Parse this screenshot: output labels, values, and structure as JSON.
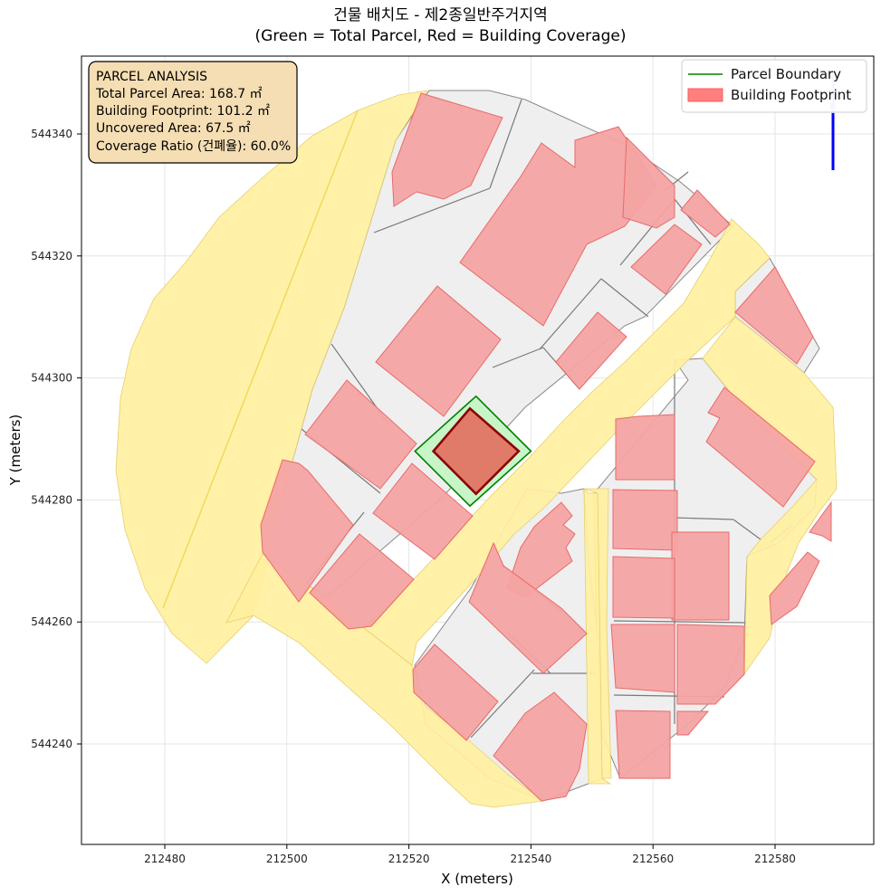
{
  "title": {
    "line1": "건물 배치도 - 제2종일반주거지역",
    "line2": "(Green = Total Parcel, Red = Building Coverage)"
  },
  "axes": {
    "xlabel": "X (meters)",
    "ylabel": "Y (meters)",
    "x_ticks": [
      "212480",
      "212500",
      "212520",
      "212540",
      "212560",
      "212580"
    ],
    "y_ticks": [
      "544340",
      "544320",
      "544300",
      "544280",
      "544260",
      "544240"
    ],
    "grid": true
  },
  "legend": {
    "placement": "top-right",
    "items": [
      {
        "label": "Parcel Boundary",
        "color": "#008000",
        "kind": "line"
      },
      {
        "label": "Building Footprint",
        "color": "#ff7f7f",
        "kind": "patch"
      }
    ]
  },
  "info_box": {
    "placement": "top-left",
    "background": "#f5deb3",
    "lines": [
      "PARCEL ANALYSIS",
      "Total Parcel Area: 168.7 ㎡",
      "Building Footprint: 101.2 ㎡",
      "Uncovered Area: 67.5 ㎡",
      "Coverage Ratio (건폐율): 60.0%"
    ]
  },
  "colors": {
    "road": "#fff0a0",
    "context_parcel": "#efefef",
    "context_building": "#f4a3a3",
    "target_parcel": "#c8f5c8",
    "target_building": "#e07b6a",
    "parcel_boundary": "#008000",
    "building_outline": "#8b0000",
    "north_arrow": "#0000ff"
  },
  "north_arrow": {
    "icon": "north-arrow-icon"
  },
  "chart_data": {
    "type": "map",
    "x_range": [
      212467,
      212597
    ],
    "y_range": [
      544224,
      544353
    ],
    "target_parcel": [
      [
        212531,
        544297
      ],
      [
        212540,
        544288
      ],
      [
        212530,
        544279
      ],
      [
        212521,
        544288
      ]
    ],
    "target_building": [
      [
        212530,
        544295
      ],
      [
        212538,
        544288
      ],
      [
        212531,
        544281
      ],
      [
        212524,
        544288
      ]
    ],
    "parcel_area_m2": 168.7,
    "building_area_m2": 101.2,
    "uncovered_area_m2": 67.5,
    "coverage_ratio_pct": 60.0
  }
}
